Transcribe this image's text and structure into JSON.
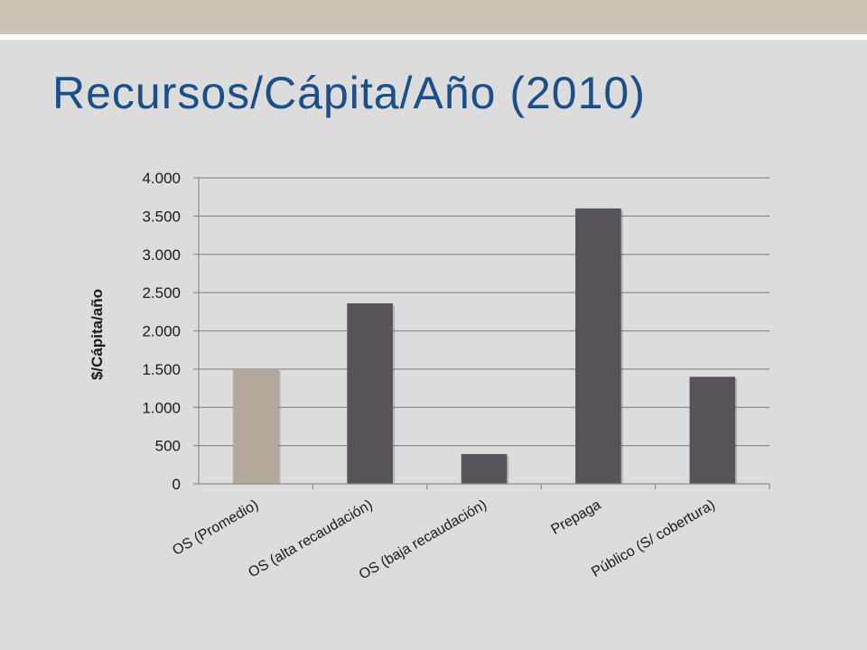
{
  "slide": {
    "title": "Recursos/Cápita/Año (2010)"
  },
  "colors": {
    "top_band": "#cbc3b5",
    "title": "#1a4f8a",
    "bar_highlight": "#b3a89b",
    "bar_default": "#58535a",
    "gridline": "#8c8c8c"
  },
  "chart_data": {
    "type": "bar",
    "title": "",
    "xlabel": "",
    "ylabel": "$/Cápita/año",
    "categories": [
      "OS (Promedio)",
      "OS (alta recaudación)",
      "OS  (baja recaudación)",
      "Prepaga",
      "Público (S/ cobertura)"
    ],
    "values": [
      1500,
      2360,
      390,
      3600,
      1400
    ],
    "bar_colors": [
      "#b3a89b",
      "#58535a",
      "#58535a",
      "#58535a",
      "#58535a"
    ],
    "ylim": [
      0,
      4000
    ],
    "yticks": [
      0,
      500,
      1000,
      1500,
      2000,
      2500,
      3000,
      3500,
      4000
    ],
    "ytick_labels": [
      "0",
      "500",
      "1.000",
      "1.500",
      "2.000",
      "2.500",
      "3.000",
      "3.500",
      "4.000"
    ],
    "grid": true,
    "legend": "none"
  }
}
